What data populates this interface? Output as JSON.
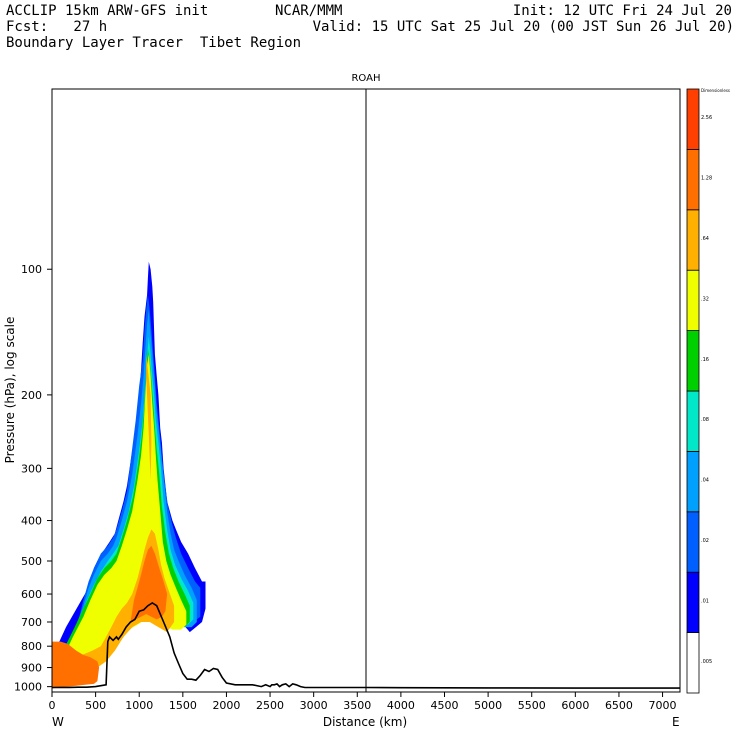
{
  "header": {
    "model": "ACCLIP 15km ARW-GFS init",
    "org": "NCAR/MMM",
    "init": "Init: 12 UTC Fri 24 Jul 20",
    "fcst": "Fcst:   27 h",
    "valid": "Valid: 15 UTC Sat 25 Jul 20 (00 JST Sun 26 Jul 20)",
    "title": "Boundary Layer Tracer  Tibet Region"
  },
  "chart_data": {
    "type": "heatmap",
    "title": "ROAH",
    "xlabel": "Distance (km)",
    "ylabel": "Pressure (hPa), log scale",
    "x_ticks": [
      "0",
      "500",
      "1000",
      "1500",
      "2000",
      "2500",
      "3000",
      "3500",
      "4000",
      "4500",
      "5000",
      "5500",
      "6000",
      "6500",
      "7000"
    ],
    "x_tick_values": [
      0,
      500,
      1000,
      1500,
      2000,
      2500,
      3000,
      3500,
      4000,
      4500,
      5000,
      5500,
      6000,
      6500,
      7000
    ],
    "y_ticks": [
      "100",
      "200",
      "300",
      "400",
      "500",
      "600",
      "700",
      "800",
      "900",
      "1000"
    ],
    "y_tick_values": [
      100,
      200,
      300,
      400,
      500,
      600,
      700,
      800,
      900,
      1000
    ],
    "xlim": [
      0,
      7200
    ],
    "ylim": [
      1030,
      37
    ],
    "y_scale": "log",
    "left_end_label": "W",
    "right_end_label": "E",
    "station_marker_km": 3600,
    "colorbar": {
      "unit_label": "Dimensionless",
      "levels": [
        ".005",
        ".01",
        ".02",
        ".04",
        ".08",
        ".16",
        ".32",
        ".64",
        "1.28",
        "2.56"
      ],
      "colors": [
        "#ffffff",
        "#0000ff",
        "#0060ff",
        "#00a0ff",
        "#00e8c8",
        "#00d000",
        "#f0ff00",
        "#ffb000",
        "#ff7000",
        "#ff4000"
      ]
    },
    "terrain_profile": {
      "km": [
        0,
        100,
        200,
        300,
        400,
        500,
        620,
        640,
        660,
        700,
        740,
        760,
        800,
        850,
        900,
        950,
        1000,
        1050,
        1100,
        1150,
        1200,
        1280,
        1350,
        1400,
        1450,
        1500,
        1550,
        1600,
        1650,
        1700,
        1750,
        1800,
        1850,
        1900,
        1950,
        2000,
        2100,
        2200,
        2300,
        2400,
        2450,
        2500,
        2520,
        2550,
        2580,
        2610,
        2640,
        2680,
        2720,
        2760,
        2800,
        2850,
        2900,
        3000,
        3600,
        4000,
        5000,
        6000,
        6500,
        7000,
        7200
      ],
      "hPa": [
        1005,
        1004,
        1004,
        1003,
        1003,
        1000,
        990,
        780,
        760,
        775,
        760,
        770,
        750,
        720,
        700,
        690,
        660,
        655,
        640,
        630,
        640,
        700,
        760,
        830,
        880,
        930,
        960,
        960,
        965,
        940,
        910,
        920,
        905,
        910,
        950,
        980,
        990,
        990,
        990,
        1000,
        990,
        1000,
        990,
        990,
        985,
        1000,
        990,
        985,
        1000,
        985,
        990,
        1000,
        1005,
        1005,
        1005,
        1006,
        1007,
        1008,
        1008,
        1008,
        1008
      ]
    },
    "tracer_regions": [
      {
        "level": ".01",
        "km": [
          0,
          700,
          760,
          820,
          860,
          900,
          960,
          1000,
          1040,
          1060,
          1100,
          1140,
          1200,
          1280,
          1360,
          1480,
          1580,
          1650,
          1720,
          1760,
          1760,
          1720,
          1640,
          1560,
          1480,
          1420,
          1380,
          1320,
          1280,
          1260,
          1240,
          1220,
          1200,
          1180,
          1170,
          1160,
          1150,
          1130,
          1110,
          1100,
          1090,
          1060,
          1040,
          1020,
          1000,
          960,
          900,
          860,
          820,
          760,
          720,
          660,
          600,
          520,
          480,
          460,
          300,
          160,
          60,
          0
        ],
        "hPa": [
          830,
          800,
          780,
          760,
          700,
          690,
          680,
          670,
          660,
          650,
          640,
          630,
          660,
          640,
          660,
          700,
          740,
          720,
          700,
          650,
          560,
          560,
          520,
          480,
          450,
          420,
          400,
          360,
          300,
          260,
          240,
          200,
          180,
          160,
          140,
          120,
          110,
          100,
          96,
          105,
          115,
          130,
          150,
          175,
          200,
          240,
          290,
          330,
          360,
          400,
          430,
          450,
          470,
          500,
          520,
          560,
          640,
          720,
          800,
          830
        ]
      },
      {
        "level": ".02",
        "km": [
          0,
          660,
          740,
          800,
          860,
          920,
          1000,
          1060,
          1120,
          1200,
          1300,
          1400,
          1480,
          1560,
          1620,
          1700,
          1700,
          1640,
          1560,
          1480,
          1420,
          1380,
          1330,
          1290,
          1260,
          1230,
          1200,
          1180,
          1160,
          1140,
          1120,
          1100,
          1080,
          1060,
          1040,
          1000,
          960,
          900,
          860,
          800,
          740,
          700,
          640,
          560,
          480,
          420,
          360,
          300,
          200,
          100,
          0
        ],
        "hPa": [
          850,
          810,
          790,
          770,
          720,
          700,
          680,
          660,
          650,
          640,
          660,
          680,
          710,
          720,
          700,
          680,
          580,
          560,
          520,
          480,
          440,
          410,
          370,
          320,
          280,
          240,
          210,
          180,
          160,
          140,
          125,
          115,
          125,
          140,
          165,
          190,
          230,
          290,
          340,
          380,
          420,
          440,
          460,
          480,
          520,
          560,
          620,
          700,
          770,
          830,
          850
        ]
      },
      {
        "level": ".04",
        "km": [
          0,
          600,
          700,
          780,
          860,
          940,
          1020,
          1100,
          1180,
          1260,
          1340,
          1420,
          1520,
          1600,
          1660,
          1660,
          1600,
          1520,
          1450,
          1400,
          1360,
          1320,
          1290,
          1260,
          1230,
          1200,
          1180,
          1160,
          1140,
          1120,
          1110,
          1090,
          1070,
          1050,
          1020,
          980,
          920,
          860,
          800,
          740,
          700,
          640,
          560,
          480,
          420,
          360,
          280,
          200,
          100,
          0
        ],
        "hPa": [
          870,
          830,
          800,
          780,
          730,
          700,
          680,
          660,
          650,
          660,
          680,
          700,
          720,
          720,
          700,
          620,
          580,
          540,
          500,
          470,
          430,
          380,
          330,
          290,
          250,
          220,
          190,
          170,
          150,
          135,
          125,
          135,
          155,
          180,
          210,
          250,
          310,
          360,
          400,
          440,
          460,
          480,
          500,
          540,
          580,
          640,
          710,
          780,
          840,
          870
        ]
      },
      {
        "level": ".08",
        "km": [
          0,
          560,
          660,
          760,
          860,
          960,
          1060,
          1160,
          1260,
          1360,
          1460,
          1560,
          1620,
          1620,
          1560,
          1480,
          1410,
          1360,
          1320,
          1280,
          1250,
          1220,
          1190,
          1170,
          1150,
          1130,
          1110,
          1090,
          1070,
          1040,
          1000,
          940,
          880,
          820,
          760,
          700,
          640,
          560,
          480,
          400,
          320,
          220,
          120,
          0
        ],
        "hPa": [
          890,
          850,
          810,
          790,
          740,
          710,
          690,
          670,
          670,
          690,
          710,
          710,
          690,
          630,
          590,
          550,
          510,
          470,
          420,
          360,
          300,
          260,
          230,
          200,
          180,
          160,
          145,
          160,
          190,
          230,
          270,
          330,
          380,
          420,
          460,
          480,
          500,
          530,
          570,
          620,
          690,
          770,
          850,
          890
        ]
      },
      {
        "level": ".16",
        "km": [
          0,
          520,
          620,
          720,
          820,
          920,
          1020,
          1120,
          1220,
          1320,
          1420,
          1520,
          1580,
          1580,
          1520,
          1450,
          1390,
          1340,
          1300,
          1260,
          1230,
          1200,
          1180,
          1160,
          1140,
          1120,
          1100,
          1080,
          1060,
          1030,
          990,
          930,
          860,
          800,
          740,
          680,
          600,
          520,
          440,
          360,
          260,
          140,
          0
        ],
        "hPa": [
          900,
          860,
          820,
          800,
          750,
          720,
          700,
          680,
          680,
          700,
          720,
          720,
          700,
          640,
          600,
          560,
          520,
          480,
          430,
          370,
          310,
          270,
          240,
          210,
          185,
          165,
          155,
          175,
          210,
          250,
          290,
          350,
          400,
          440,
          480,
          500,
          520,
          550,
          600,
          650,
          720,
          810,
          900
        ]
      },
      {
        "level": ".32",
        "km": [
          0,
          480,
          580,
          680,
          780,
          880,
          980,
          1080,
          1180,
          1280,
          1380,
          1480,
          1540,
          1540,
          1480,
          1420,
          1360,
          1310,
          1270,
          1240,
          1210,
          1190,
          1170,
          1150,
          1130,
          1110,
          1090,
          1070,
          1050,
          1020,
          980,
          920,
          860,
          800,
          740,
          680,
          600,
          520,
          440,
          360,
          240,
          120,
          0
        ],
        "hPa": [
          910,
          880,
          840,
          810,
          760,
          730,
          710,
          690,
          690,
          710,
          730,
          730,
          710,
          660,
          620,
          580,
          540,
          500,
          450,
          380,
          320,
          280,
          240,
          210,
          180,
          160,
          170,
          200,
          240,
          280,
          320,
          380,
          420,
          460,
          500,
          520,
          540,
          570,
          620,
          680,
          760,
          860,
          910
        ]
      },
      {
        "level": ".64",
        "km": [
          0,
          420,
          520,
          620,
          720,
          820,
          920,
          1020,
          1120,
          1220,
          1320,
          1400,
          1400,
          1340,
          1290,
          1250,
          1220,
          1180,
          1140,
          1100,
          1060,
          1020,
          980,
          920,
          860,
          800,
          740,
          680,
          620,
          560,
          460,
          340,
          200,
          0
        ],
        "hPa": [
          920,
          910,
          900,
          870,
          820,
          760,
          720,
          700,
          700,
          720,
          740,
          700,
          640,
          590,
          550,
          510,
          470,
          430,
          420,
          440,
          470,
          510,
          550,
          600,
          630,
          650,
          680,
          720,
          760,
          800,
          820,
          840,
          830,
          920
        ]
      },
      {
        "level": ".64",
        "km": [
          1080,
          1130,
          1140,
          1130,
          1110,
          1080
        ],
        "hPa": [
          160,
          200,
          260,
          320,
          250,
          180
        ]
      },
      {
        "level": "1.28",
        "km": [
          0,
          80,
          180,
          280,
          380,
          480,
          520,
          540,
          520,
          440,
          360,
          280,
          180,
          100,
          0
        ],
        "hPa": [
          1010,
          1005,
          1000,
          995,
          990,
          985,
          970,
          900,
          870,
          850,
          840,
          820,
          790,
          780,
          780
        ]
      },
      {
        "level": "1.28",
        "km": [
          900,
          960,
          1020,
          1080,
          1140,
          1200,
          1260,
          1300,
          1320,
          1280,
          1230,
          1180,
          1140,
          1100,
          1060,
          1020,
          980,
          940,
          900
        ],
        "hPa": [
          700,
          690,
          680,
          670,
          680,
          690,
          680,
          660,
          600,
          560,
          520,
          480,
          460,
          470,
          500,
          540,
          580,
          620,
          700
        ]
      }
    ]
  }
}
